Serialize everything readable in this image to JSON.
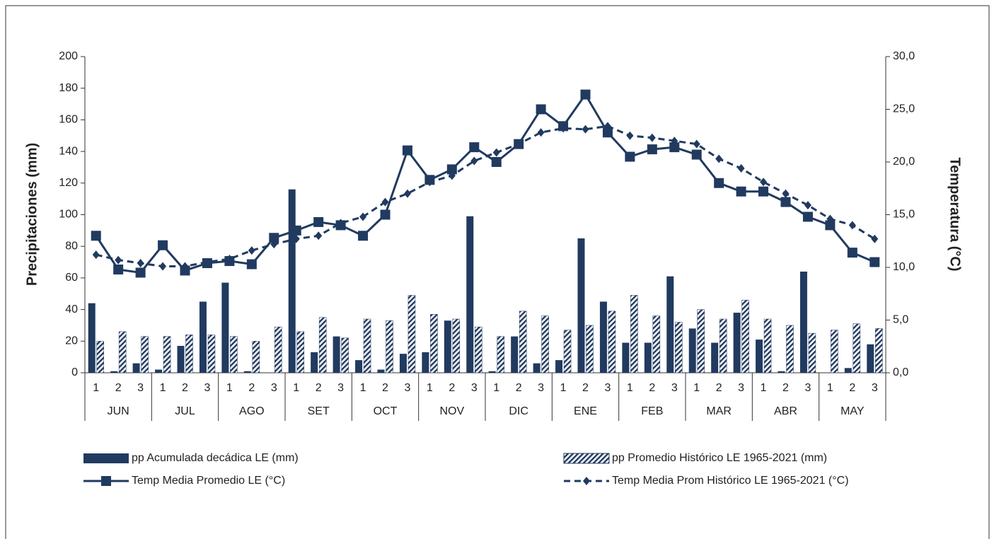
{
  "chart_data": {
    "type": "combo",
    "y_label": "Precipitaciones (mm)",
    "y2_label": "Temperatura (°C)",
    "categories": [
      "1",
      "2",
      "3",
      "1",
      "2",
      "3",
      "1",
      "2",
      "3",
      "1",
      "2",
      "3",
      "1",
      "2",
      "3",
      "1",
      "2",
      "3",
      "1",
      "2",
      "3",
      "1",
      "2",
      "3",
      "1",
      "2",
      "3",
      "1",
      "2",
      "3",
      "1",
      "2",
      "3",
      "1",
      "2",
      "3"
    ],
    "groups": [
      "JUN",
      "JUL",
      "AGO",
      "SET",
      "OCT",
      "NOV",
      "DIC",
      "ENE",
      "FEB",
      "MAR",
      "ABR",
      "MAY"
    ],
    "ylim": [
      0,
      200
    ],
    "yticks": [
      0,
      20,
      40,
      60,
      80,
      100,
      120,
      140,
      160,
      180,
      200
    ],
    "y2lim": [
      0,
      30
    ],
    "y2ticks": [
      {
        "value": 0,
        "label": "0,0"
      },
      {
        "value": 5,
        "label": "5,0"
      },
      {
        "value": 10,
        "label": "10,0"
      },
      {
        "value": 15,
        "label": "15,0"
      },
      {
        "value": 20,
        "label": "20,0"
      },
      {
        "value": 25,
        "label": "25,0"
      },
      {
        "value": 30,
        "label": "30,0"
      }
    ],
    "series": [
      {
        "name": "pp Acumulada decádica LE (mm)",
        "kind": "bar",
        "fill": "solid",
        "color": "#213a60",
        "values": [
          44,
          1,
          6,
          2,
          17,
          45,
          57,
          1,
          0,
          116,
          13,
          23,
          8,
          2,
          12,
          13,
          33,
          99,
          1,
          23,
          6,
          8,
          85,
          45,
          19,
          19,
          61,
          28,
          19,
          38,
          21,
          1,
          64,
          0,
          3,
          18
        ]
      },
      {
        "name": "pp Promedio Histórico LE 1965-2021 (mm)",
        "kind": "bar",
        "fill": "hatch",
        "color": "#213a60",
        "values": [
          20,
          26,
          23,
          23,
          24,
          24,
          23,
          20,
          29,
          26,
          35,
          22,
          34,
          33,
          49,
          37,
          34,
          29,
          23,
          39,
          36,
          27,
          30,
          39,
          49,
          36,
          32,
          40,
          34,
          46,
          34,
          30,
          25,
          27,
          31,
          28
        ]
      },
      {
        "name": "Temp Media Promedio LE (°C)",
        "kind": "line",
        "axis": "y2",
        "marker": "square",
        "dashed": false,
        "color": "#213a60",
        "values": [
          13.0,
          9.8,
          9.5,
          12.1,
          9.7,
          10.4,
          10.6,
          10.3,
          12.8,
          13.5,
          14.3,
          14.0,
          13.0,
          15.0,
          21.1,
          18.3,
          19.3,
          21.4,
          20.0,
          21.7,
          25.0,
          23.4,
          26.4,
          22.8,
          20.5,
          21.2,
          21.4,
          20.7,
          18.0,
          17.2,
          17.2,
          16.2,
          14.8,
          14.0,
          11.4,
          10.5
        ]
      },
      {
        "name": "Temp Media Prom Histórico LE 1965-2021 (°C)",
        "kind": "line",
        "axis": "y2",
        "marker": "diamond",
        "dashed": true,
        "color": "#213a60",
        "values": [
          11.2,
          10.7,
          10.4,
          10.1,
          10.1,
          10.5,
          10.8,
          11.6,
          12.2,
          12.7,
          13.0,
          14.2,
          14.8,
          16.2,
          17.0,
          18.1,
          18.7,
          20.1,
          20.9,
          21.7,
          22.8,
          23.2,
          23.1,
          23.4,
          22.5,
          22.3,
          22.0,
          21.7,
          20.3,
          19.4,
          18.1,
          17.0,
          15.9,
          14.6,
          14.0,
          12.7
        ]
      }
    ]
  }
}
